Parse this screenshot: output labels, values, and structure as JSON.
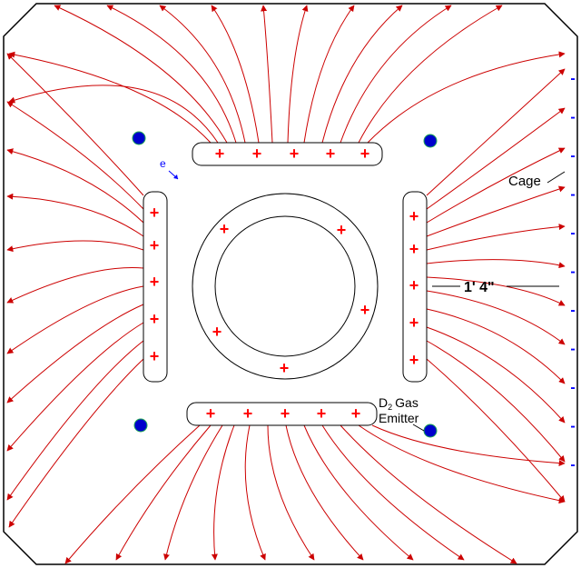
{
  "diagram": {
    "cage_label": "Cage",
    "dimension_label": "1' 4\"",
    "electron_label": "e",
    "emitter_label_line1_prefix": "D",
    "emitter_label_line1_subscript": "2",
    "emitter_label_line1_suffix": "Gas",
    "emitter_label_line2": "Emitter",
    "positive_symbol": "+",
    "negative_symbol": "-",
    "colors": {
      "field_line": "#cc0000",
      "positive_charge": "#ff0000",
      "negative_charge": "#0000ff",
      "emitter": "#0000cc",
      "electron": "#0000ff",
      "outline": "#000000"
    }
  }
}
